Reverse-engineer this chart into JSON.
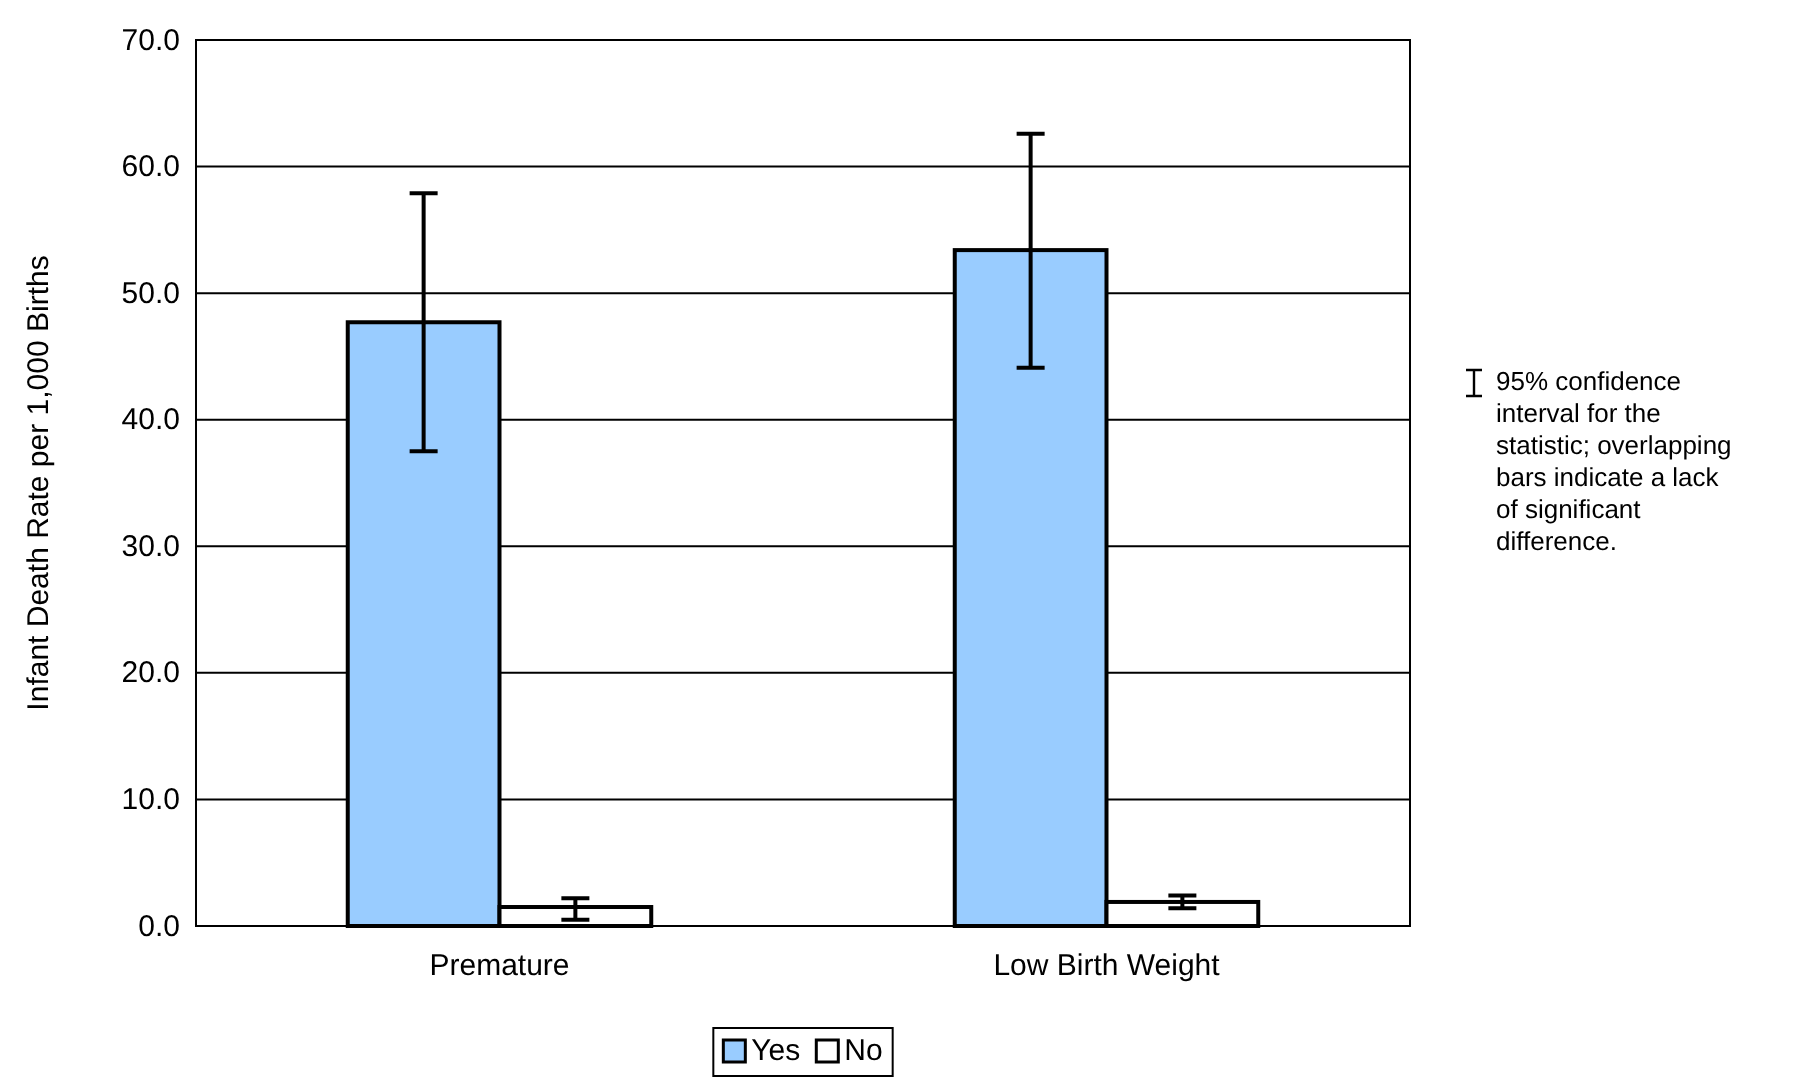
{
  "chart_data": {
    "type": "bar",
    "ylabel": "Infant Death Rate per 1,000 Births",
    "categories": [
      "Premature",
      "Low Birth Weight"
    ],
    "series": [
      {
        "name": "Yes",
        "color": "#99ccff",
        "values": [
          47.7,
          53.4
        ],
        "errors": [
          [
            37.5,
            57.9
          ],
          [
            44.1,
            62.6
          ]
        ]
      },
      {
        "name": "No",
        "color": "#ffffff",
        "values": [
          1.5,
          1.9
        ],
        "errors": [
          [
            0.5,
            2.2
          ],
          [
            1.4,
            2.4
          ]
        ]
      }
    ],
    "ylim": [
      0,
      70
    ],
    "yticks": [
      {
        "value": 0,
        "label": "0.0"
      },
      {
        "value": 10,
        "label": "10.0"
      },
      {
        "value": 20,
        "label": "20.0"
      },
      {
        "value": 30,
        "label": "30.0"
      },
      {
        "value": 40,
        "label": "40.0"
      },
      {
        "value": 50,
        "label": "50.0"
      },
      {
        "value": 60,
        "label": "60.0"
      },
      {
        "value": 70,
        "label": "70.0"
      }
    ],
    "grid": "y",
    "legend": "bottom",
    "annotations": [
      "95% confidence interval for the statistic; overlapping bars indicate a lack of significant difference."
    ]
  }
}
